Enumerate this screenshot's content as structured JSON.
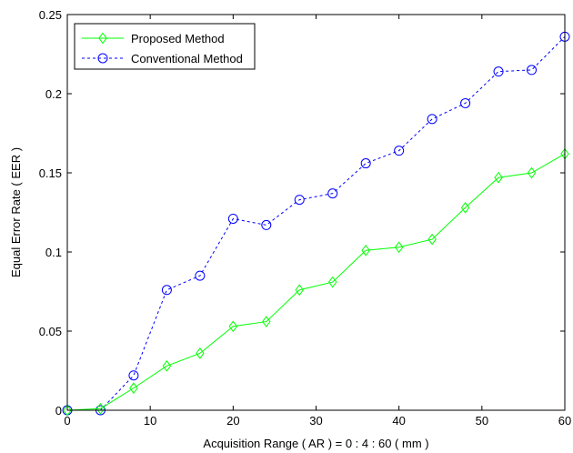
{
  "chart_data": {
    "type": "line",
    "xlabel": "Acquisition Range ( AR ) = 0 : 4 : 60 ( mm )",
    "ylabel": "Equal Error Rate ( EER )",
    "xlim": [
      0,
      60
    ],
    "ylim": [
      0,
      0.25
    ],
    "xticks": [
      "0",
      "10",
      "20",
      "30",
      "40",
      "50",
      "60"
    ],
    "yticks": [
      "0",
      "0.05",
      "0.1",
      "0.15",
      "0.2",
      "0.25"
    ],
    "grid": false,
    "legend_position": "top-left",
    "x": [
      0,
      4,
      8,
      12,
      16,
      20,
      24,
      28,
      32,
      36,
      40,
      44,
      48,
      52,
      56,
      60
    ],
    "series": [
      {
        "name": "Proposed Method",
        "color": "#00ff00",
        "marker": "diamond",
        "line_style": "solid",
        "values": [
          0,
          0.001,
          0.014,
          0.028,
          0.036,
          0.053,
          0.056,
          0.076,
          0.081,
          0.101,
          0.103,
          0.108,
          0.128,
          0.147,
          0.15,
          0.162
        ]
      },
      {
        "name": "Conventional Method",
        "color": "#0000ff",
        "marker": "circle",
        "line_style": "dashed",
        "values": [
          0,
          0,
          0.022,
          0.076,
          0.085,
          0.121,
          0.117,
          0.133,
          0.137,
          0.156,
          0.164,
          0.184,
          0.194,
          0.214,
          0.215,
          0.236
        ]
      }
    ]
  }
}
